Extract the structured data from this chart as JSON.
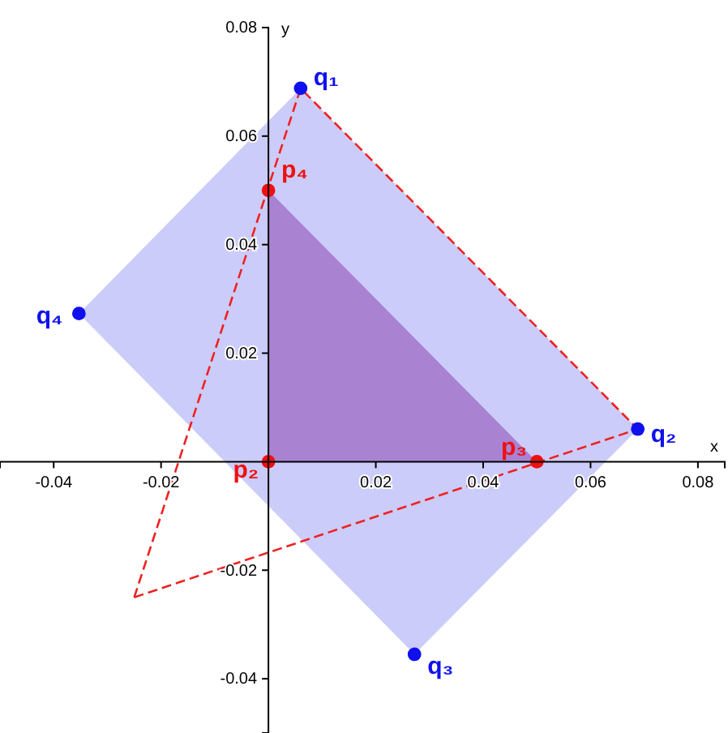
{
  "chart_data": {
    "type": "scatter",
    "xlabel": "x",
    "ylabel": "y",
    "xlim": [
      -0.05,
      0.085
    ],
    "ylim": [
      -0.05,
      0.08
    ],
    "xticks": [
      -0.04,
      -0.02,
      0.02,
      0.04,
      0.06,
      0.08
    ],
    "yticks": [
      -0.04,
      -0.02,
      0.02,
      0.04,
      0.06,
      0.08
    ],
    "grid": false,
    "marker": "circle",
    "series": [
      {
        "type": "area",
        "marker": "none",
        "color": "#ccccfb",
        "x": [
          0.006,
          0.0688,
          0.0272,
          -0.0353
        ],
        "values": [
          0.0688,
          0.006,
          -0.0355,
          0.0273
        ]
      },
      {
        "type": "area",
        "marker": "none",
        "color": "#d4a3d6",
        "x": [
          0,
          0.05,
          0
        ],
        "values": [
          0,
          0,
          0.05
        ]
      },
      {
        "type": "line",
        "marker": "none",
        "color": "#ee2222",
        "line_style": "dashed",
        "x": [
          -0.025,
          0.006,
          0.0688
        ],
        "values": [
          -0.025,
          0.0688,
          0.006
        ]
      },
      {
        "type": "line",
        "marker": "none",
        "color": "#ee2222",
        "line_style": "dashed",
        "x": [
          -0.025,
          0.0688
        ],
        "values": [
          -0.025,
          0.006
        ]
      },
      {
        "color": "#1010ee",
        "x": [
          0.006,
          0.0688,
          0.0272,
          -0.0353
        ],
        "values": [
          0.0688,
          0.006,
          -0.0355,
          0.0273
        ]
      },
      {
        "color": "#ee1010",
        "x": [
          0,
          0.05,
          0
        ],
        "values": [
          0,
          0,
          0.05
        ]
      }
    ],
    "annotations": [
      {
        "text": "q₁",
        "x": 0.006,
        "y": 0.0688
      },
      {
        "text": "q₂",
        "x": 0.0688,
        "y": 0.006
      },
      {
        "text": "q₃",
        "x": 0.0272,
        "y": -0.0355
      },
      {
        "text": "q₄",
        "x": -0.0353,
        "y": 0.0273
      },
      {
        "text": "p₂",
        "x": 0,
        "y": 0
      },
      {
        "text": "p₃",
        "x": 0.05,
        "y": 0
      },
      {
        "text": "p₄",
        "x": 0,
        "y": 0.05
      }
    ]
  }
}
